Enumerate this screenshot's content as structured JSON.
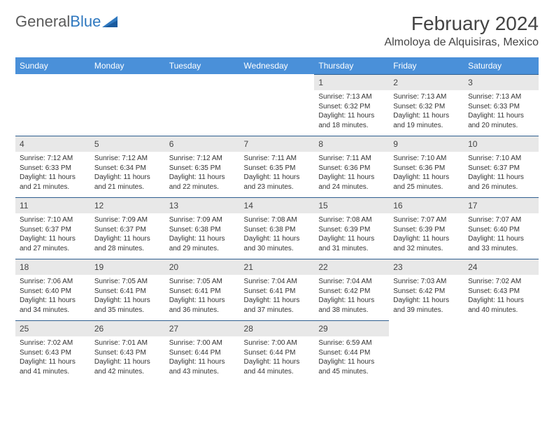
{
  "logo": {
    "text_gray": "General",
    "text_blue": "Blue"
  },
  "title": "February 2024",
  "location": "Almoloya de Alquisiras, Mexico",
  "colors": {
    "header_bg": "#4a90d9",
    "header_text": "#ffffff",
    "daynum_bg": "#e8e8e8",
    "row_border": "#2f5f8f",
    "body_text": "#333333",
    "logo_gray": "#5a5a5a",
    "logo_blue": "#2f78bf"
  },
  "day_headers": [
    "Sunday",
    "Monday",
    "Tuesday",
    "Wednesday",
    "Thursday",
    "Friday",
    "Saturday"
  ],
  "weeks": [
    [
      null,
      null,
      null,
      null,
      {
        "n": "1",
        "sr": "7:13 AM",
        "ss": "6:32 PM",
        "dl": "11 hours and 18 minutes."
      },
      {
        "n": "2",
        "sr": "7:13 AM",
        "ss": "6:32 PM",
        "dl": "11 hours and 19 minutes."
      },
      {
        "n": "3",
        "sr": "7:13 AM",
        "ss": "6:33 PM",
        "dl": "11 hours and 20 minutes."
      }
    ],
    [
      {
        "n": "4",
        "sr": "7:12 AM",
        "ss": "6:33 PM",
        "dl": "11 hours and 21 minutes."
      },
      {
        "n": "5",
        "sr": "7:12 AM",
        "ss": "6:34 PM",
        "dl": "11 hours and 21 minutes."
      },
      {
        "n": "6",
        "sr": "7:12 AM",
        "ss": "6:35 PM",
        "dl": "11 hours and 22 minutes."
      },
      {
        "n": "7",
        "sr": "7:11 AM",
        "ss": "6:35 PM",
        "dl": "11 hours and 23 minutes."
      },
      {
        "n": "8",
        "sr": "7:11 AM",
        "ss": "6:36 PM",
        "dl": "11 hours and 24 minutes."
      },
      {
        "n": "9",
        "sr": "7:10 AM",
        "ss": "6:36 PM",
        "dl": "11 hours and 25 minutes."
      },
      {
        "n": "10",
        "sr": "7:10 AM",
        "ss": "6:37 PM",
        "dl": "11 hours and 26 minutes."
      }
    ],
    [
      {
        "n": "11",
        "sr": "7:10 AM",
        "ss": "6:37 PM",
        "dl": "11 hours and 27 minutes."
      },
      {
        "n": "12",
        "sr": "7:09 AM",
        "ss": "6:37 PM",
        "dl": "11 hours and 28 minutes."
      },
      {
        "n": "13",
        "sr": "7:09 AM",
        "ss": "6:38 PM",
        "dl": "11 hours and 29 minutes."
      },
      {
        "n": "14",
        "sr": "7:08 AM",
        "ss": "6:38 PM",
        "dl": "11 hours and 30 minutes."
      },
      {
        "n": "15",
        "sr": "7:08 AM",
        "ss": "6:39 PM",
        "dl": "11 hours and 31 minutes."
      },
      {
        "n": "16",
        "sr": "7:07 AM",
        "ss": "6:39 PM",
        "dl": "11 hours and 32 minutes."
      },
      {
        "n": "17",
        "sr": "7:07 AM",
        "ss": "6:40 PM",
        "dl": "11 hours and 33 minutes."
      }
    ],
    [
      {
        "n": "18",
        "sr": "7:06 AM",
        "ss": "6:40 PM",
        "dl": "11 hours and 34 minutes."
      },
      {
        "n": "19",
        "sr": "7:05 AM",
        "ss": "6:41 PM",
        "dl": "11 hours and 35 minutes."
      },
      {
        "n": "20",
        "sr": "7:05 AM",
        "ss": "6:41 PM",
        "dl": "11 hours and 36 minutes."
      },
      {
        "n": "21",
        "sr": "7:04 AM",
        "ss": "6:41 PM",
        "dl": "11 hours and 37 minutes."
      },
      {
        "n": "22",
        "sr": "7:04 AM",
        "ss": "6:42 PM",
        "dl": "11 hours and 38 minutes."
      },
      {
        "n": "23",
        "sr": "7:03 AM",
        "ss": "6:42 PM",
        "dl": "11 hours and 39 minutes."
      },
      {
        "n": "24",
        "sr": "7:02 AM",
        "ss": "6:43 PM",
        "dl": "11 hours and 40 minutes."
      }
    ],
    [
      {
        "n": "25",
        "sr": "7:02 AM",
        "ss": "6:43 PM",
        "dl": "11 hours and 41 minutes."
      },
      {
        "n": "26",
        "sr": "7:01 AM",
        "ss": "6:43 PM",
        "dl": "11 hours and 42 minutes."
      },
      {
        "n": "27",
        "sr": "7:00 AM",
        "ss": "6:44 PM",
        "dl": "11 hours and 43 minutes."
      },
      {
        "n": "28",
        "sr": "7:00 AM",
        "ss": "6:44 PM",
        "dl": "11 hours and 44 minutes."
      },
      {
        "n": "29",
        "sr": "6:59 AM",
        "ss": "6:44 PM",
        "dl": "11 hours and 45 minutes."
      },
      null,
      null
    ]
  ],
  "labels": {
    "sunrise": "Sunrise:",
    "sunset": "Sunset:",
    "daylight": "Daylight:"
  }
}
